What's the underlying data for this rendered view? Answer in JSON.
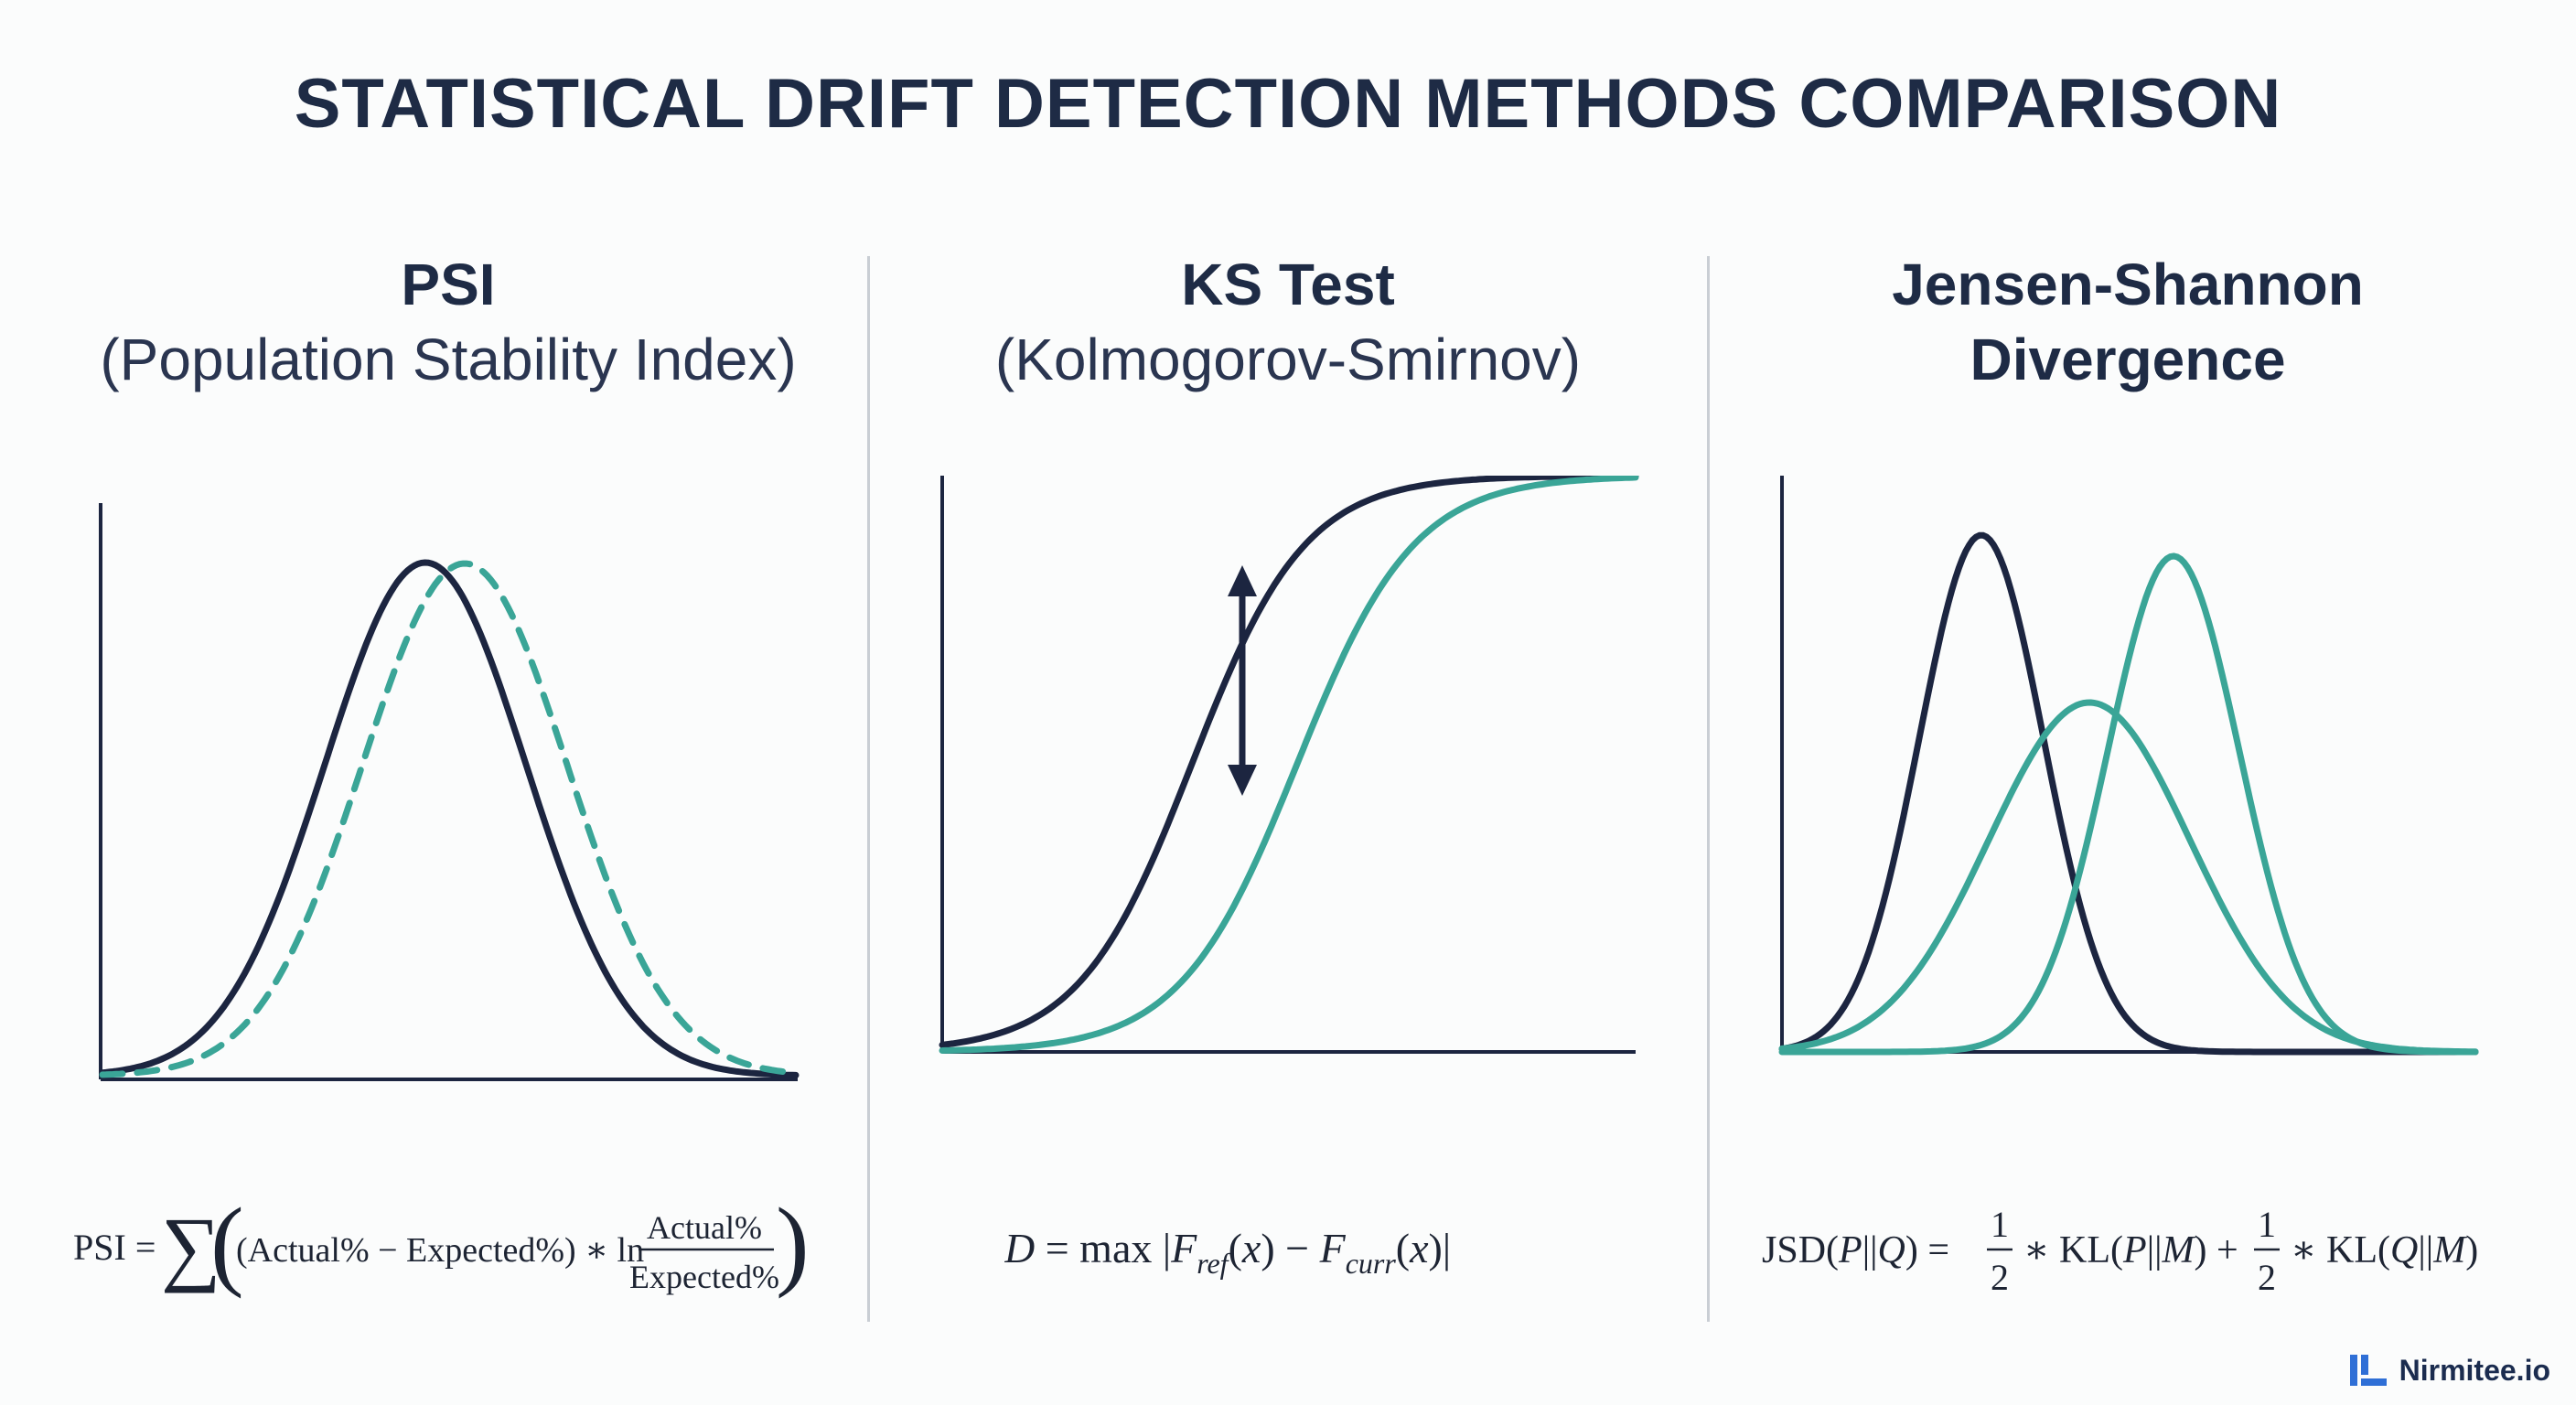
{
  "title": "STATISTICAL DRIFT DETECTION METHODS COMPARISON",
  "panels": [
    {
      "title": "PSI",
      "subtitle": "(Population Stability Index)",
      "formula": "PSI = ∑((Actual% − Expected%) ∗ ln Actual% / Expected%)"
    },
    {
      "title": "KS Test",
      "subtitle": "(Kolmogorov-Smirnov)",
      "formula": "D = max |F_ref(x) − F_curr(x)|"
    },
    {
      "title": "Jensen-Shannon",
      "subtitle": "Divergence",
      "formula": "JSD(P||Q) = 1/2 ∗ KL(P||M) + 1/2 ∗ KL(Q||M)"
    }
  ],
  "colors": {
    "reference": "#1c2540",
    "current": "#3aa597",
    "text": "#1e2b45",
    "divider": "#c9ced4"
  },
  "brand": {
    "name": "Nirmitee.io",
    "icon": "nirmitee-logo-icon"
  }
}
